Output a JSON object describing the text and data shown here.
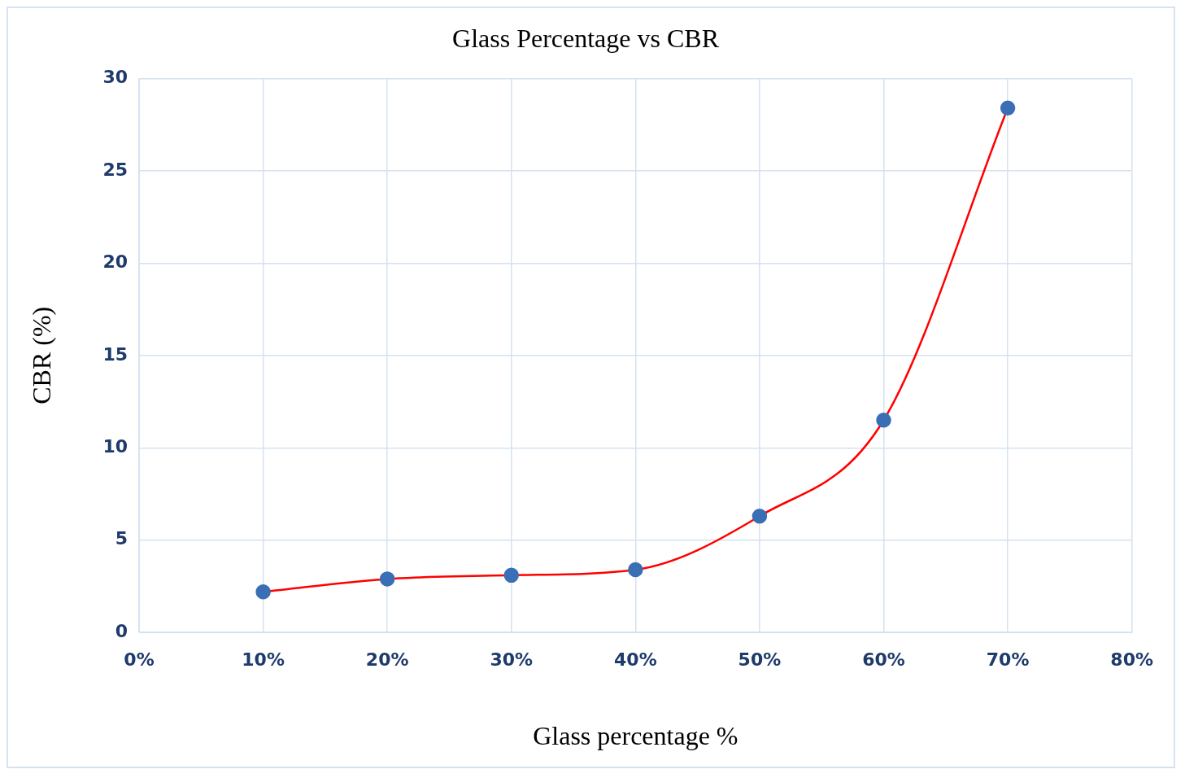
{
  "chart_data": {
    "type": "line",
    "title": "Glass Percentage vs CBR",
    "xlabel": "Glass percentage %",
    "ylabel": "CBR (%)",
    "x": [
      10,
      20,
      30,
      40,
      50,
      60,
      70
    ],
    "series": [
      {
        "color": "#ff0000",
        "colors": [
          "#3a6fb5",
          "#3a6fb5",
          "#3a6fb5",
          "#3a6fb5",
          "#3a6fb5",
          "#3a6fb5",
          "#3a6fb5"
        ],
        "values": [
          2.2,
          2.9,
          3.1,
          3.4,
          6.3,
          11.5,
          28.4
        ]
      }
    ],
    "xlim": [
      0,
      80
    ],
    "xticks": [
      {
        "value": 0,
        "label": "0%"
      },
      {
        "value": 10,
        "label": "10%"
      },
      {
        "value": 20,
        "label": "20%"
      },
      {
        "value": 30,
        "label": "30%"
      },
      {
        "value": 40,
        "label": "40%"
      },
      {
        "value": 50,
        "label": "50%"
      },
      {
        "value": 60,
        "label": "60%"
      },
      {
        "value": 70,
        "label": "70%"
      },
      {
        "value": 80,
        "label": "80%"
      }
    ],
    "ylim": [
      0,
      30
    ],
    "yticks": [
      0,
      5,
      10,
      15,
      20,
      25,
      30
    ],
    "grid": true,
    "legend": false,
    "marker": "circle",
    "line_style": "solid"
  }
}
